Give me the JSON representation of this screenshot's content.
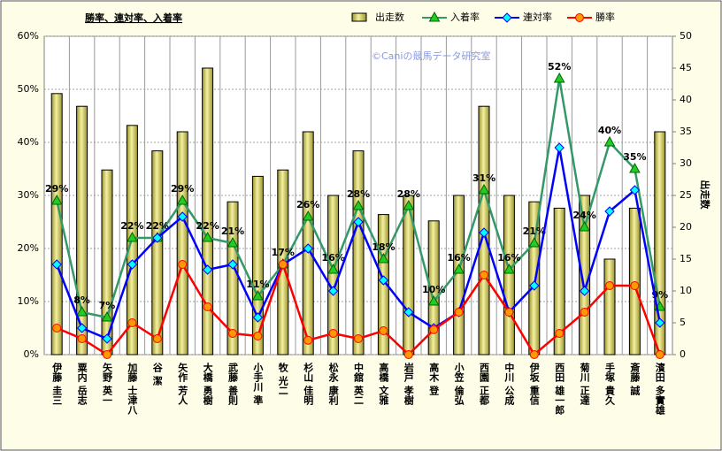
{
  "chart_data": {
    "type": "combo",
    "title": "勝率、連対率、入着率",
    "watermark": "©Caniの競馬データ研究室",
    "y2label": "出走数",
    "categories": [
      "伊藤 圭三",
      "粟内 岳志",
      "矢野 英一",
      "加藤 士津八",
      "谷 潔",
      "矢作 芳人",
      "大橋 勇樹",
      "武藤 善則",
      "小手川 準",
      "牧 光二",
      "杉山 佳明",
      "松永 康利",
      "中舘 英二",
      "高橋 文雅",
      "岩戸 孝樹",
      "高木 登",
      "小笠 倫弘",
      "西園 正都",
      "中川 公成",
      "伊坂 重信",
      "西田 雄一郎",
      "菊川 正達",
      "手塚 貴久",
      "斎藤 誠",
      "濱田 多實雄"
    ],
    "series": [
      {
        "name": "出走数",
        "type": "bar",
        "axis": "y2",
        "color": "#e8e070",
        "values": [
          41,
          39,
          29,
          36,
          32,
          35,
          45,
          24,
          28,
          29,
          35,
          25,
          32,
          22,
          25,
          21,
          25,
          39,
          25,
          24,
          23,
          25,
          15,
          23,
          35
        ]
      },
      {
        "name": "入着率",
        "type": "line",
        "marker": "triangle",
        "color": "#339966",
        "values": [
          29,
          8,
          7,
          22,
          22,
          29,
          22,
          21,
          11,
          17,
          26,
          16,
          28,
          18,
          28,
          10,
          16,
          31,
          16,
          21,
          52,
          24,
          40,
          35,
          9
        ],
        "value_labels": [
          "29%",
          "8%",
          "7%",
          "22%",
          "22%",
          "29%",
          "22%",
          "21%",
          "11%",
          "17%",
          "26%",
          "16%",
          "28%",
          "18%",
          "28%",
          "10%",
          "16%",
          "31%",
          "16%",
          "21%",
          "52%",
          "24%",
          "40%",
          "35%",
          "9%"
        ]
      },
      {
        "name": "連対率",
        "type": "line",
        "marker": "diamond",
        "color": "#0000ff",
        "values": [
          17,
          5,
          3,
          17,
          22,
          26,
          16,
          17,
          7,
          17,
          20,
          12,
          25,
          14,
          8,
          5,
          8,
          23,
          8,
          13,
          39,
          12,
          27,
          31,
          6
        ]
      },
      {
        "name": "勝率",
        "type": "line",
        "marker": "circle",
        "color": "#ff0000",
        "values": [
          5,
          3,
          0,
          6,
          3,
          17,
          9,
          4,
          3.5,
          17,
          2.7,
          4,
          3,
          4.5,
          0,
          4.7,
          8,
          15,
          8,
          0,
          4,
          8,
          13,
          13,
          0
        ]
      }
    ],
    "ylim": [
      0,
      60
    ],
    "yticks": [
      {
        "value": 0,
        "label": "0%"
      },
      {
        "value": 10,
        "label": "10%"
      },
      {
        "value": 20,
        "label": "20%"
      },
      {
        "value": 30,
        "label": "30%"
      },
      {
        "value": 40,
        "label": "40%"
      },
      {
        "value": 50,
        "label": "50%"
      },
      {
        "value": 60,
        "label": "60%"
      }
    ],
    "y2lim": [
      0,
      50
    ],
    "y2ticks": [
      0,
      5,
      10,
      15,
      20,
      25,
      30,
      35,
      40,
      45,
      50
    ],
    "grid": true
  }
}
